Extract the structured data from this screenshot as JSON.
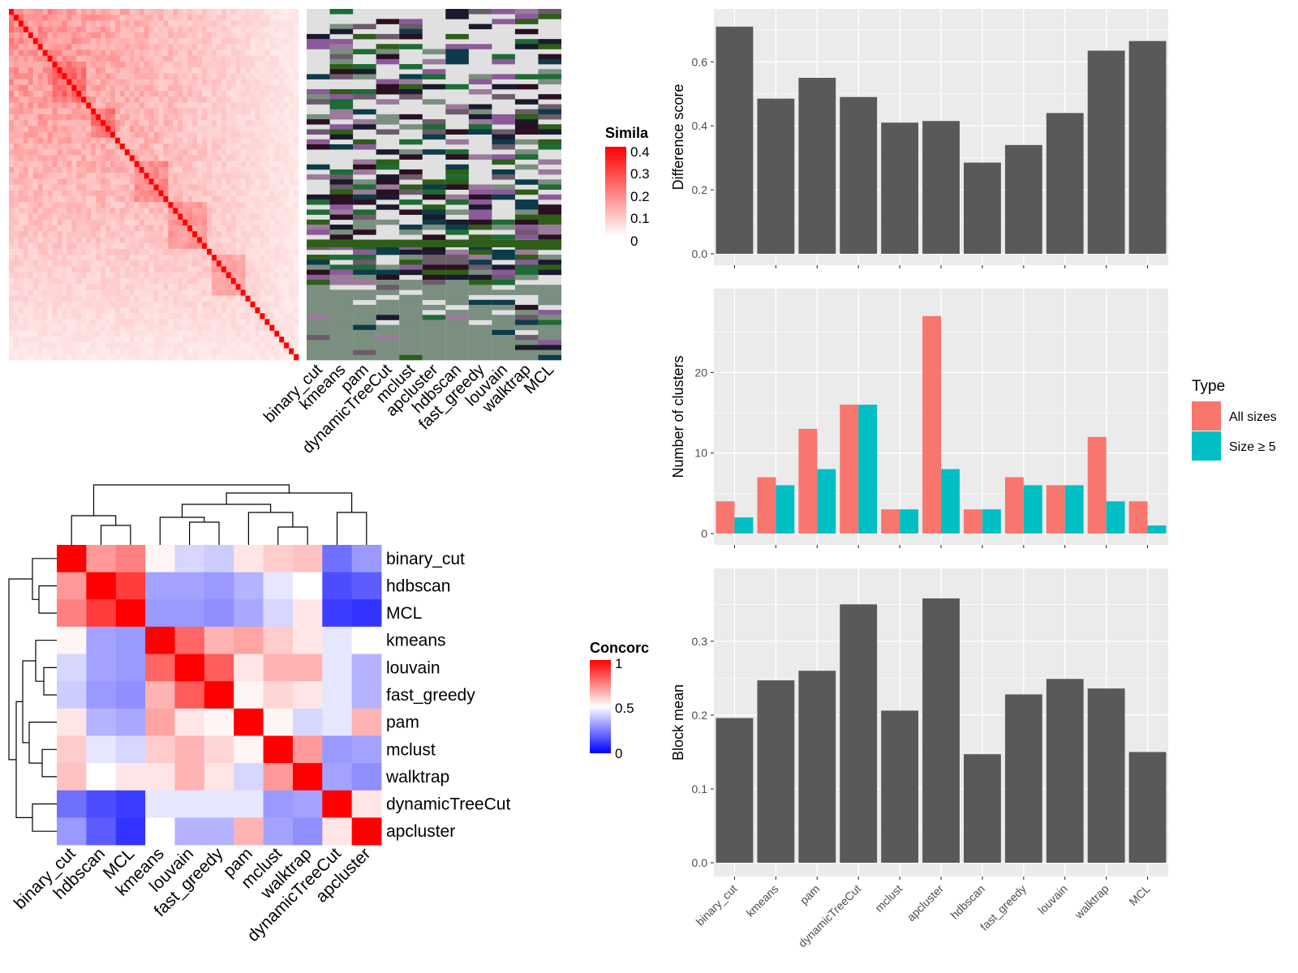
{
  "chart_data": [
    {
      "type": "heatmap",
      "legend_title": "Simila",
      "legend_ticks": [
        "0.4",
        "0.3",
        "0.2",
        "0.1",
        "0"
      ],
      "column_labels": [
        "binary_cut",
        "kmeans",
        "pam",
        "dynamicTreeCut",
        "mclust",
        "apcluster",
        "hdbscan",
        "fast_greedy",
        "louvain",
        "walktrap",
        "MCL"
      ]
    },
    {
      "type": "heatmap",
      "legend_title": "Concorc",
      "legend_ticks": [
        "1",
        "0.5",
        "0"
      ],
      "row_labels": [
        "binary_cut",
        "hdbscan",
        "MCL",
        "kmeans",
        "louvain",
        "fast_greedy",
        "pam",
        "mclust",
        "walktrap",
        "dynamicTreeCut",
        "apcluster"
      ],
      "column_labels": [
        "binary_cut",
        "hdbscan",
        "MCL",
        "kmeans",
        "louvain",
        "fast_greedy",
        "pam",
        "mclust",
        "walktrap",
        "dynamicTreeCut",
        "apcluster"
      ],
      "values": [
        [
          1.0,
          0.7,
          0.75,
          0.52,
          0.42,
          0.4,
          0.55,
          0.6,
          0.62,
          0.22,
          0.3
        ],
        [
          0.7,
          1.0,
          0.88,
          0.32,
          0.32,
          0.3,
          0.35,
          0.45,
          0.5,
          0.15,
          0.18
        ],
        [
          0.75,
          0.88,
          1.0,
          0.3,
          0.3,
          0.28,
          0.33,
          0.42,
          0.55,
          0.12,
          0.1
        ],
        [
          0.52,
          0.32,
          0.3,
          1.0,
          0.8,
          0.65,
          0.68,
          0.6,
          0.55,
          0.45,
          0.5
        ],
        [
          0.42,
          0.32,
          0.3,
          0.8,
          1.0,
          0.82,
          0.55,
          0.65,
          0.65,
          0.45,
          0.35
        ],
        [
          0.4,
          0.3,
          0.28,
          0.65,
          0.82,
          1.0,
          0.52,
          0.58,
          0.55,
          0.45,
          0.35
        ],
        [
          0.55,
          0.35,
          0.33,
          0.68,
          0.55,
          0.52,
          1.0,
          0.52,
          0.42,
          0.45,
          0.65
        ],
        [
          0.6,
          0.45,
          0.42,
          0.6,
          0.65,
          0.58,
          0.52,
          1.0,
          0.7,
          0.3,
          0.32
        ],
        [
          0.62,
          0.5,
          0.55,
          0.55,
          0.65,
          0.55,
          0.42,
          0.7,
          1.0,
          0.32,
          0.28
        ],
        [
          0.22,
          0.15,
          0.12,
          0.45,
          0.45,
          0.45,
          0.45,
          0.3,
          0.32,
          1.0,
          0.55
        ],
        [
          0.3,
          0.18,
          0.1,
          0.5,
          0.35,
          0.35,
          0.65,
          0.32,
          0.28,
          0.55,
          1.0
        ]
      ]
    },
    {
      "type": "bar",
      "categories": [
        "binary_cut",
        "kmeans",
        "pam",
        "dynamicTreeCut",
        "mclust",
        "apcluster",
        "hdbscan",
        "fast_greedy",
        "louvain",
        "walktrap",
        "MCL"
      ],
      "ylabel": "Difference score",
      "ylim": [
        0,
        0.73
      ],
      "yticks": [
        "0.0",
        "0.2",
        "0.4",
        "0.6"
      ],
      "values": [
        0.71,
        0.485,
        0.55,
        0.49,
        0.41,
        0.415,
        0.285,
        0.34,
        0.44,
        0.635,
        0.665
      ],
      "color": "#595959"
    },
    {
      "type": "bar",
      "categories": [
        "binary_cut",
        "kmeans",
        "pam",
        "dynamicTreeCut",
        "mclust",
        "apcluster",
        "hdbscan",
        "fast_greedy",
        "louvain",
        "walktrap",
        "MCL"
      ],
      "ylabel": "Number of clusters",
      "ylim": [
        0,
        29
      ],
      "yticks": [
        "0",
        "10",
        "20"
      ],
      "legend_title": "Type",
      "series": [
        {
          "name": "All sizes",
          "color": "#F8766D",
          "values": [
            4,
            7,
            13,
            16,
            3,
            27,
            3,
            7,
            6,
            12,
            4
          ]
        },
        {
          "name": "Size ≥ 5",
          "color": "#00BFC4",
          "values": [
            2,
            6,
            8,
            16,
            3,
            8,
            3,
            6,
            6,
            4,
            1
          ]
        }
      ]
    },
    {
      "type": "bar",
      "categories": [
        "binary_cut",
        "kmeans",
        "pam",
        "dynamicTreeCut",
        "mclust",
        "apcluster",
        "hdbscan",
        "fast_greedy",
        "louvain",
        "walktrap",
        "MCL"
      ],
      "ylabel": "Block mean",
      "ylim": [
        0,
        0.38
      ],
      "yticks": [
        "0.0",
        "0.1",
        "0.2",
        "0.3"
      ],
      "values": [
        0.196,
        0.247,
        0.26,
        0.35,
        0.206,
        0.358,
        0.147,
        0.228,
        0.249,
        0.236,
        0.15
      ],
      "color": "#595959"
    }
  ],
  "colors": {
    "panel_bg": "#EBEBEB",
    "grid": "#FFFFFF",
    "heat_red": "#FF0000",
    "heat_blue": "#0000FF",
    "cluster_bg": "#E0E0E0"
  }
}
